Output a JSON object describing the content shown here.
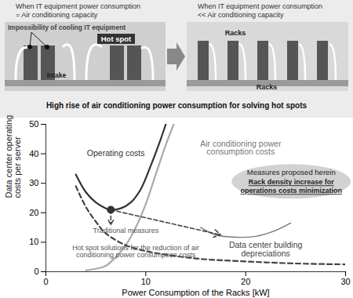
{
  "diagram": {
    "left_panel": {
      "title": [
        "When IT equipment power consumption",
        "= Air conditioning capacity"
      ],
      "labels": [
        "Impossibility of cooling IT equipment",
        "Hot spot",
        "Intake"
      ]
    },
    "right_panel": {
      "title": [
        "When IT equipment power consumption",
        "<< Air conditioning capacity"
      ],
      "labels": [
        "Racks",
        "Racks"
      ]
    },
    "caption": "High rise of air conditioning power consumption for solving hot spots"
  },
  "chart_data": {
    "type": "line",
    "x_label": "Power Consumption of the Racks [kW]",
    "y_label": [
      "Data center operating",
      "costs per server"
    ],
    "xlim": [
      0,
      30
    ],
    "xticks": [
      0,
      10,
      20,
      30
    ],
    "ylim": [
      0,
      50
    ],
    "yticks": [
      0,
      10,
      20,
      30,
      40,
      50
    ],
    "series": [
      {
        "name": "Operating costs",
        "color": "#333333",
        "line_style": "solid",
        "label_x": 7,
        "label_y": 40,
        "x": [
          3,
          4,
          5,
          6,
          6.5,
          7.5,
          8.5,
          9.5,
          10.5,
          11.5,
          12
        ],
        "values": [
          33,
          27,
          23.5,
          21.5,
          21,
          21.5,
          23.5,
          28,
          36,
          45,
          50
        ]
      },
      {
        "name": "Air conditioning power consumption costs",
        "color": "#aaaaaa",
        "line_style": "solid",
        "label_x": 19.5,
        "label_y": 42,
        "x": [
          4,
          5,
          6,
          7,
          8,
          9,
          10,
          11,
          12,
          12.8
        ],
        "values": [
          0.5,
          1,
          2,
          5,
          9,
          15,
          23,
          33,
          43,
          50
        ]
      },
      {
        "name": "Data center building depreciations",
        "color": "#444444",
        "line_style": "dashed",
        "label_x": 22,
        "label_y": 7.5,
        "x": [
          3,
          4,
          5,
          6,
          8,
          10,
          15,
          20,
          25,
          30
        ],
        "values": [
          29,
          22,
          17,
          13,
          9,
          7,
          4.5,
          3.5,
          2.8,
          2.5
        ]
      },
      {
        "color": "#777777",
        "line_style": "solid",
        "x": [
          15.5,
          17,
          19,
          21,
          23,
          24.5
        ],
        "values": [
          15,
          12.5,
          11.7,
          12,
          14,
          16.5
        ]
      }
    ],
    "points": [
      {
        "x": 6.5,
        "y": 21
      }
    ],
    "arrows": [
      {
        "x1": 6.5,
        "y1": 21,
        "x2": 6.5,
        "y2": 16
      },
      {
        "x1": 6.5,
        "y1": 21,
        "x2": 17.5,
        "y2": 12.5
      }
    ],
    "annotations": [
      {
        "text": "Traditional measures",
        "x": 8,
        "y": 14,
        "color": "#555555"
      },
      {
        "text": "Hot spot solutions for the reduction of air conditioning power consumption costs",
        "x": 9,
        "y": 6.8,
        "color": "#555555"
      }
    ],
    "callout": {
      "x": 24.6,
      "y": 30.5,
      "title": "Measures proposed herein",
      "text": [
        "Rack density increase for",
        "operations costs minimization"
      ]
    }
  }
}
